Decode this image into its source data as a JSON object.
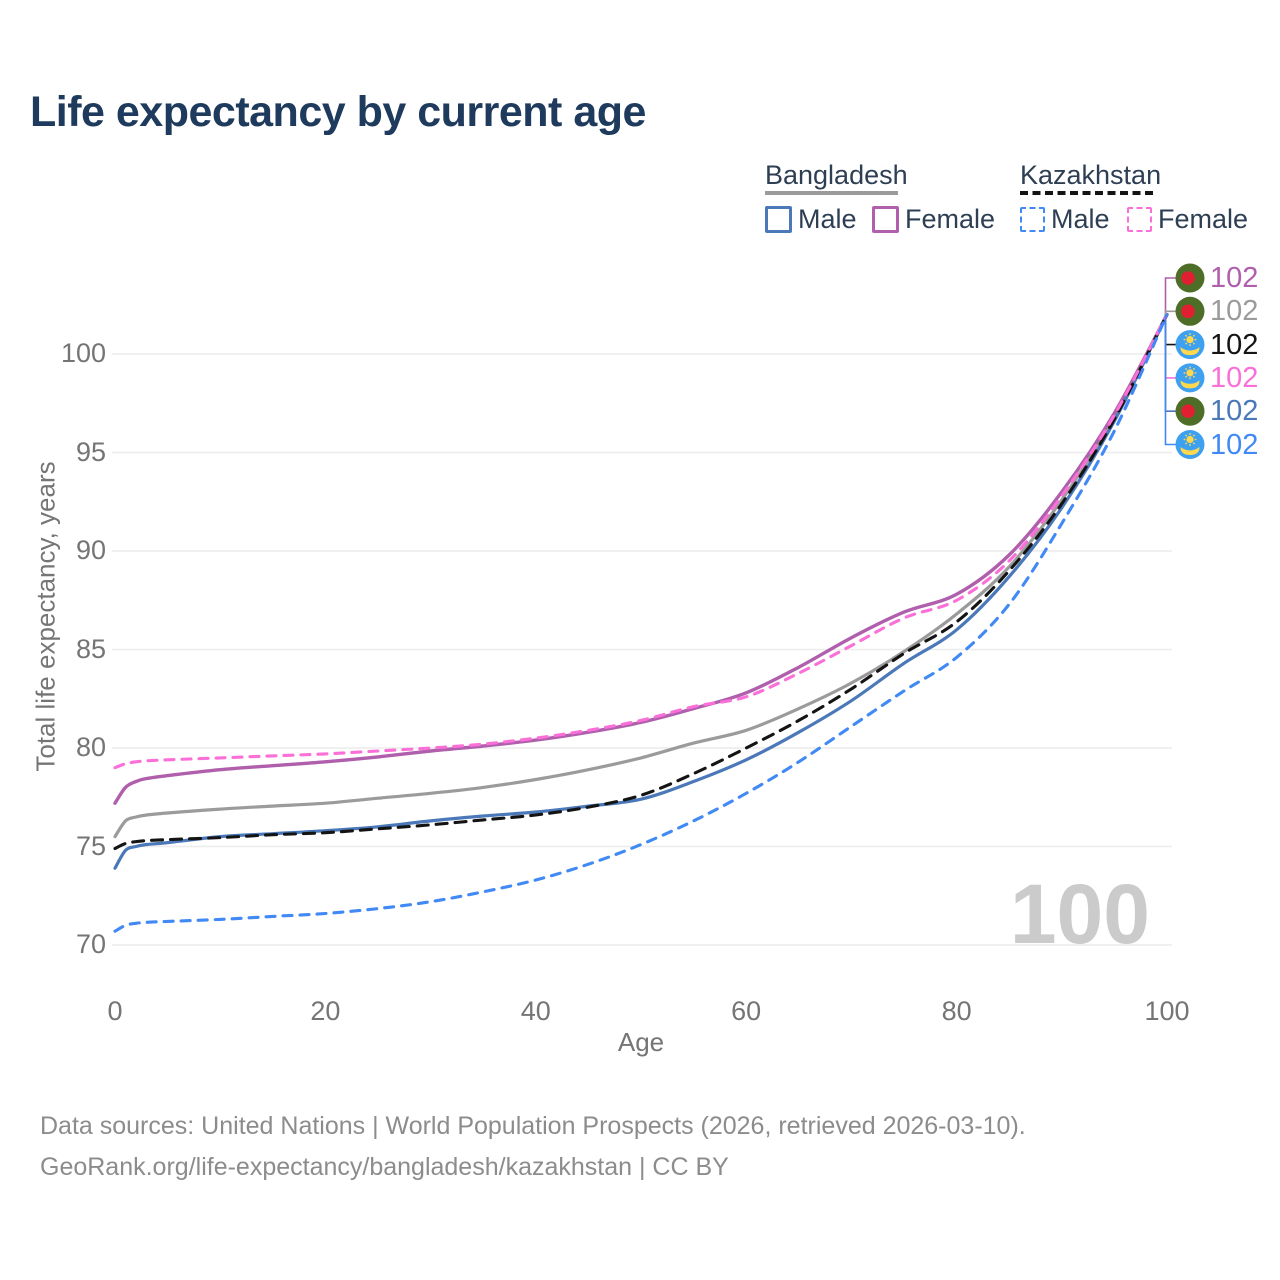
{
  "title": "Life expectancy by current age",
  "legend": {
    "groups": [
      {
        "name": "Bangladesh",
        "line_style": "solid",
        "line_color": "#9b9b9b",
        "items": [
          {
            "label": "Male",
            "color": "#4a78b8",
            "dashed": false
          },
          {
            "label": "Female",
            "color": "#b05fac",
            "dashed": false
          }
        ]
      },
      {
        "name": "Kazakhstan",
        "line_style": "dashed",
        "line_color": "#141414",
        "items": [
          {
            "label": "Male",
            "color": "#4189f5",
            "dashed": true
          },
          {
            "label": "Female",
            "color": "#fb6fd8",
            "dashed": true
          }
        ]
      }
    ]
  },
  "axes": {
    "x": {
      "label": "Age",
      "ticks": [
        0,
        20,
        40,
        60,
        80,
        100
      ],
      "domain": [
        0,
        100
      ]
    },
    "y": {
      "label": "Total life expectancy, years",
      "ticks": [
        70,
        75,
        80,
        85,
        90,
        95,
        100
      ],
      "domain": [
        70,
        102
      ]
    }
  },
  "watermark": "100",
  "flags": {
    "bd": {
      "field": "#4e6e28",
      "disc": "#e11f32"
    },
    "kz": {
      "field": "#3ea0f0",
      "emblem": "#ffd84d"
    }
  },
  "end_labels": [
    {
      "id": "bangladesh-female",
      "series": "Bangladesh Female",
      "flag": "bd",
      "value": "102",
      "color": "#b05fac"
    },
    {
      "id": "bangladesh-both",
      "series": "Bangladesh",
      "flag": "bd",
      "value": "102",
      "color": "#9b9b9b"
    },
    {
      "id": "kazakhstan-both",
      "series": "Kazakhstan",
      "flag": "kz",
      "value": "102",
      "color": "#141414"
    },
    {
      "id": "kazakhstan-female",
      "series": "Kazakhstan Female",
      "flag": "kz",
      "value": "102",
      "color": "#fb6fd8"
    },
    {
      "id": "bangladesh-male",
      "series": "Bangladesh Male",
      "flag": "bd",
      "value": "102",
      "color": "#4a78b8"
    },
    {
      "id": "kazakhstan-male",
      "series": "Kazakhstan Male",
      "flag": "kz",
      "value": "102",
      "color": "#4189f5"
    }
  ],
  "footer": {
    "line1": "Data sources: United Nations | World Population Prospects (2026, retrieved 2026-03-10).",
    "line2": "GeoRank.org/life-expectancy/bangladesh/kazakhstan | CC BY"
  },
  "chart_data": {
    "type": "line",
    "title": "Life expectancy by current age",
    "xlabel": "Age",
    "ylabel": "Total life expectancy, years",
    "xlim": [
      0,
      100
    ],
    "ylim": [
      70,
      102
    ],
    "grid": "horizontal",
    "legend_position": "top-right",
    "x": [
      0,
      1,
      2,
      3,
      5,
      10,
      15,
      20,
      25,
      30,
      35,
      40,
      45,
      50,
      55,
      60,
      65,
      70,
      75,
      80,
      85,
      90,
      95,
      100
    ],
    "series": [
      {
        "id": "bangladesh-both",
        "name": "Bangladesh",
        "color": "#9b9b9b",
        "dash": "",
        "width": 3.2,
        "values": [
          75.5,
          76.3,
          76.5,
          76.6,
          76.7,
          76.9,
          77.05,
          77.2,
          77.45,
          77.7,
          78.0,
          78.4,
          78.9,
          79.5,
          80.25,
          80.9,
          82.0,
          83.3,
          84.9,
          86.8,
          89.2,
          92.6,
          96.8,
          102
        ]
      },
      {
        "id": "bangladesh-female",
        "name": "Bangladesh Female",
        "color": "#b05fac",
        "dash": "",
        "width": 3.4,
        "values": [
          77.2,
          78.0,
          78.3,
          78.45,
          78.6,
          78.9,
          79.1,
          79.3,
          79.55,
          79.85,
          80.1,
          80.4,
          80.8,
          81.3,
          82.0,
          82.8,
          84.1,
          85.6,
          86.9,
          87.8,
          89.8,
          93.0,
          97.0,
          102
        ]
      },
      {
        "id": "bangladesh-male",
        "name": "Bangladesh Male",
        "color": "#4a78b8",
        "dash": "",
        "width": 3.2,
        "values": [
          73.9,
          74.8,
          75.0,
          75.1,
          75.2,
          75.5,
          75.65,
          75.8,
          76.0,
          76.3,
          76.55,
          76.75,
          77.05,
          77.4,
          78.3,
          79.4,
          80.8,
          82.4,
          84.3,
          86.0,
          88.7,
          92.2,
          96.6,
          102
        ]
      },
      {
        "id": "kazakhstan-both",
        "name": "Kazakhstan",
        "color": "#141414",
        "dash": "11 8",
        "width": 3.1,
        "values": [
          74.9,
          75.15,
          75.25,
          75.3,
          75.35,
          75.45,
          75.6,
          75.7,
          75.9,
          76.1,
          76.35,
          76.6,
          77.0,
          77.6,
          78.7,
          80.0,
          81.4,
          83.0,
          84.8,
          86.4,
          89.0,
          92.4,
          96.7,
          102
        ]
      },
      {
        "id": "kazakhstan-female",
        "name": "Kazakhstan Female",
        "color": "#fb6fd8",
        "dash": "9 8",
        "width": 3.1,
        "values": [
          79.0,
          79.2,
          79.3,
          79.35,
          79.4,
          79.5,
          79.6,
          79.7,
          79.85,
          80.0,
          80.2,
          80.5,
          80.9,
          81.4,
          82.1,
          82.6,
          83.8,
          85.2,
          86.6,
          87.5,
          89.5,
          92.8,
          96.9,
          102
        ]
      },
      {
        "id": "kazakhstan-male",
        "name": "Kazakhstan Male",
        "color": "#4189f5",
        "dash": "9 8",
        "width": 3.1,
        "values": [
          70.7,
          71.0,
          71.1,
          71.15,
          71.2,
          71.3,
          71.45,
          71.6,
          71.85,
          72.2,
          72.7,
          73.3,
          74.1,
          75.1,
          76.3,
          77.7,
          79.3,
          81.1,
          82.9,
          84.6,
          87.3,
          91.4,
          96.1,
          102
        ]
      }
    ]
  }
}
